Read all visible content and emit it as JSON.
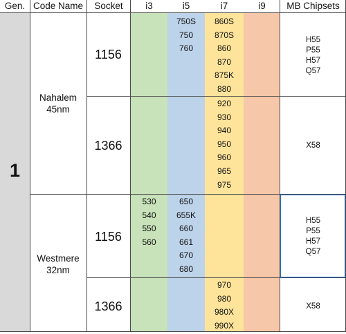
{
  "header": {
    "gen": "Gen.",
    "code_name": "Code Name",
    "socket": "Socket",
    "i3": "i3",
    "i5": "i5",
    "i7": "i7",
    "i9": "i9",
    "chipsets": "MB Chipsets"
  },
  "colors": {
    "gen_bg": "#d9d9d9",
    "i3_bg": "#c8e2b9",
    "i5_bg": "#bdd3ea",
    "i7_bg": "#fde49a",
    "i9_bg": "#f6c7a8",
    "selection": "#1a73e8"
  },
  "generation": "1",
  "groups": [
    {
      "code_name_line1": "Nahalem",
      "code_name_line2": "45nm",
      "rows": [
        {
          "socket": "1156",
          "i3": [],
          "i5": [
            "750S",
            "750",
            "760"
          ],
          "i7": [
            "860S",
            "870S",
            "860",
            "870",
            "875K",
            "880"
          ],
          "i9": [],
          "chipsets": [
            "H55",
            "P55",
            "H57",
            "Q57"
          ]
        },
        {
          "socket": "1366",
          "i3": [],
          "i5": [],
          "i7": [
            "920",
            "930",
            "940",
            "950",
            "960",
            "965",
            "975"
          ],
          "i9": [],
          "chipsets": [
            "X58"
          ]
        }
      ]
    },
    {
      "code_name_line1": "Westmere",
      "code_name_line2": "32nm",
      "rows": [
        {
          "socket": "1156",
          "i3": [
            "530",
            "540",
            "550",
            "560"
          ],
          "i5": [
            "650",
            "655K",
            "660",
            "661",
            "670",
            "680"
          ],
          "i7": [],
          "i9": [],
          "chipsets": [
            "H55",
            "P55",
            "H57",
            "Q57"
          ]
        },
        {
          "socket": "1366",
          "i3": [],
          "i5": [],
          "i7": [
            "970",
            "980",
            "980X",
            "990X"
          ],
          "i9": [],
          "chipsets": [
            "X58"
          ]
        }
      ]
    }
  ]
}
